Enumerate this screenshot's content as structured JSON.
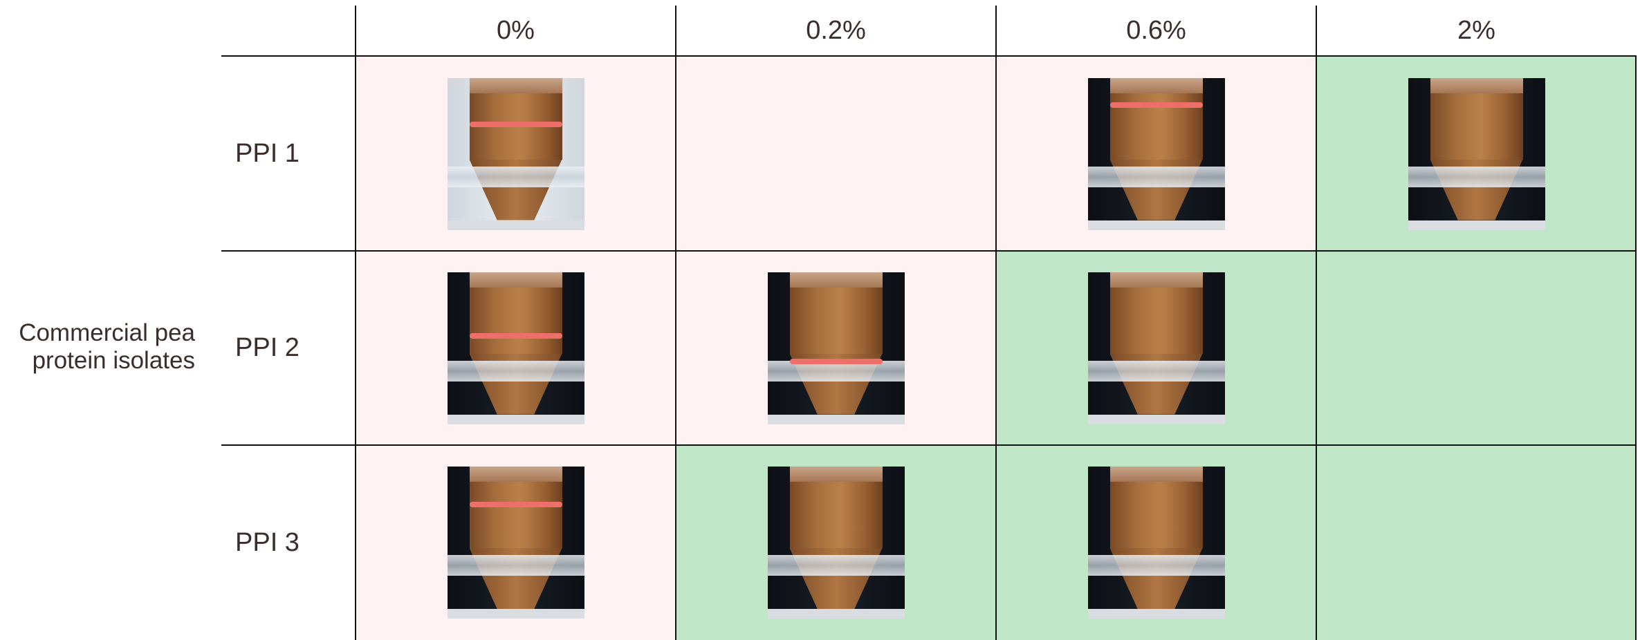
{
  "side_label": [
    "Commercial pea",
    "protein isolates"
  ],
  "columns": [
    "0%",
    "0.2%",
    "0.6%",
    "2%"
  ],
  "rows": [
    {
      "label": "PPI 1",
      "cells": [
        {
          "state": "red",
          "tube": true,
          "mark": 0.29,
          "style": "clear"
        },
        {
          "state": "red",
          "tube": false
        },
        {
          "state": "red",
          "tube": true,
          "mark": 0.16,
          "style": "dark"
        },
        {
          "state": "green",
          "tube": true,
          "style": "dark"
        }
      ]
    },
    {
      "label": "PPI 2",
      "cells": [
        {
          "state": "red",
          "tube": true,
          "mark": 0.4,
          "style": "dark"
        },
        {
          "state": "red",
          "tube": true,
          "mark": 0.57,
          "style": "dark"
        },
        {
          "state": "green",
          "tube": true,
          "style": "dark"
        },
        {
          "state": "green",
          "tube": false
        }
      ]
    },
    {
      "label": "PPI 3",
      "cells": [
        {
          "state": "red",
          "tube": true,
          "mark": 0.23,
          "style": "dark"
        },
        {
          "state": "green",
          "tube": true,
          "style": "dark"
        },
        {
          "state": "green",
          "tube": true,
          "style": "dark"
        },
        {
          "state": "green",
          "tube": false
        }
      ]
    }
  ],
  "colors": {
    "unstable": "#fef2f2",
    "stable": "#bfe6c6",
    "marker": "#ee6f6a"
  }
}
